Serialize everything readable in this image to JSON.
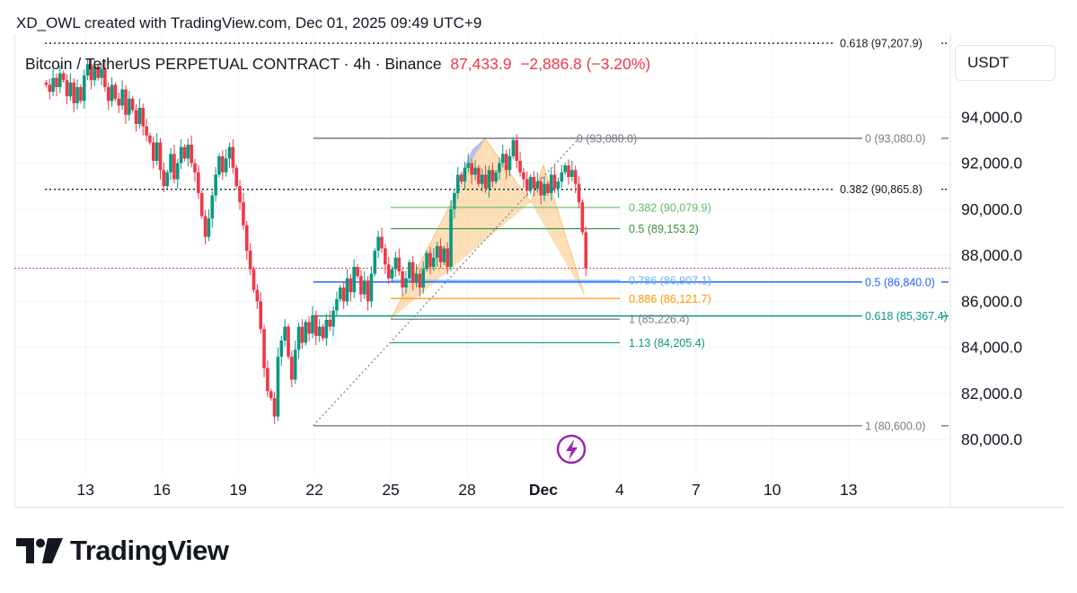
{
  "header": {
    "credit": "XD_OWL created with TradingView.com, Dec 01, 2025 09:49 UTC+9"
  },
  "legend": {
    "symbol": "Bitcoin / TetherUS PERPETUAL CONTRACT · 4h · Binance",
    "price": "87,433.9",
    "change": "−2,886.8 (−3.20%)"
  },
  "currency": "USDT",
  "brand": "TradingView",
  "colors": {
    "up": "#089981",
    "down": "#f23645",
    "pattern_fill": "#f9c47c",
    "pattern_blue": "#9db3e8",
    "blue_line": "#2962ff",
    "grid": "#f0f3fa"
  },
  "chart_data": {
    "type": "candlestick",
    "timeframe": "4h",
    "y_ticks": [
      "94,000.0",
      "92,000.0",
      "90,000.0",
      "88,000.0",
      "86,000.0",
      "84,000.0",
      "82,000.0",
      "80,000.0"
    ],
    "y_tick_values": [
      94000,
      92000,
      90000,
      88000,
      86000,
      84000,
      82000,
      80000
    ],
    "x_ticks": [
      "13",
      "16",
      "19",
      "22",
      "25",
      "28",
      "Dec",
      "4",
      "7",
      "10",
      "13"
    ],
    "x_tick_days": [
      13,
      16,
      19,
      22,
      25,
      28,
      31,
      34,
      37,
      40,
      43
    ],
    "ylim": [
      78800,
      97600
    ],
    "xlim": [
      10.2,
      47
    ],
    "last_price": 87433.9,
    "dotted_levels": [
      {
        "value": 97207.9,
        "label": "0.618 (97,207.9)"
      },
      {
        "value": 90865.8,
        "label": "0.382 (90,865.8)"
      }
    ],
    "right_fib": [
      {
        "value": 93080.0,
        "label": "0 (93,080.0)",
        "color": "#787b86"
      },
      {
        "value": 86840.0,
        "label": "0.5 (86,840.0)",
        "color": "#2962ff"
      },
      {
        "value": 85367.4,
        "label": "0.618 (85,367.4)",
        "color": "#089981"
      },
      {
        "value": 80600.0,
        "label": "1 (80,600.0)",
        "color": "#787b86"
      }
    ],
    "pattern_fib": [
      {
        "value": 93080.0,
        "label": "0 (93,080.0)",
        "color": "#787b86"
      },
      {
        "value": 90079.9,
        "label": "0.382 (90,079.9)",
        "color": "#66bb6a"
      },
      {
        "value": 89153.2,
        "label": "0.5 (89,153.2)",
        "color": "#388e3c"
      },
      {
        "value": 86907.1,
        "label": "0.786 (86,907.1)",
        "color": "#64b5f6"
      },
      {
        "value": 86121.7,
        "label": "0.886 (86,121.7)",
        "color": "#ff9800"
      },
      {
        "value": 85226.4,
        "label": "1 (85,226.4)",
        "color": "#787b86"
      },
      {
        "value": 84205.4,
        "label": "1.13 (84,205.4)",
        "color": "#089981"
      }
    ],
    "harmonic": {
      "X": [
        25.0,
        85226
      ],
      "A": [
        28.7,
        93080
      ],
      "B": [
        30.5,
        90300
      ],
      "C": [
        31.0,
        91900
      ],
      "D": [
        32.6,
        86300
      ]
    },
    "swing_line": {
      "from": [
        21.95,
        80600
      ],
      "to": [
        32.4,
        93080
      ]
    },
    "closes": [
      95400,
      95100,
      95700,
      95300,
      95900,
      95600,
      94900,
      95500,
      94600,
      95300,
      94700,
      95800,
      96300,
      95600,
      96200,
      95700,
      96100,
      95300,
      94700,
      95400,
      94800,
      94500,
      95200,
      94100,
      94800,
      94300,
      93700,
      94400,
      93600,
      93200,
      92900,
      92100,
      92900,
      91700,
      91000,
      91600,
      92400,
      91300,
      92000,
      92700,
      92200,
      92800,
      92000,
      91600,
      90700,
      89700,
      88800,
      89600,
      90600,
      91500,
      92300,
      91600,
      92200,
      92700,
      91800,
      91000,
      90300,
      89300,
      88200,
      87400,
      86500,
      86000,
      84800,
      83100,
      82100,
      81800,
      81000,
      83600,
      84300,
      84900,
      83600,
      82600,
      83900,
      84900,
      84200,
      85100,
      84600,
      85400,
      84500,
      84900,
      84400,
      85200,
      84900,
      85600,
      86100,
      86600,
      86000,
      87000,
      86400,
      87500,
      87100,
      86300,
      86900,
      86000,
      87200,
      88200,
      88800,
      88300,
      87600,
      87000,
      87400,
      87900,
      87300,
      86600,
      87000,
      87700,
      86800,
      87200,
      86600,
      87400,
      88100,
      87500,
      87900,
      88400,
      87700,
      88300,
      87500,
      90000,
      90700,
      91500,
      91200,
      91800,
      92000,
      91500,
      91800,
      91100,
      91500,
      90900,
      91700,
      91200,
      91600,
      92000,
      92400,
      91700,
      92300,
      93000,
      92100,
      91600,
      91300,
      90800,
      91400,
      90900,
      91200,
      90600,
      91100,
      90700,
      91500,
      90900,
      91200,
      91600,
      91900,
      91400,
      91700,
      91100,
      90300,
      89000,
      87433.9
    ]
  }
}
